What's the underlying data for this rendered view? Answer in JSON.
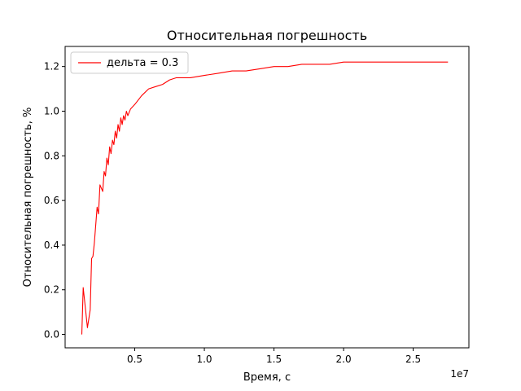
{
  "chart_data": {
    "type": "line",
    "title": "Относительная погрешность",
    "xlabel": "Время, с",
    "ylabel": "Относительная погрешность, %",
    "x_offset_label": "1e7",
    "xlim": [
      0.0,
      2.9
    ],
    "ylim": [
      -0.06,
      1.29
    ],
    "x_ticks": [
      0.5,
      1.0,
      1.5,
      2.0,
      2.5
    ],
    "x_tick_labels": [
      "0.5",
      "1.0",
      "1.5",
      "2.0",
      "2.5"
    ],
    "y_ticks": [
      0.0,
      0.2,
      0.4,
      0.6,
      0.8,
      1.0,
      1.2
    ],
    "y_tick_labels": [
      "0.0",
      "0.2",
      "0.4",
      "0.6",
      "0.8",
      "1.0",
      "1.2"
    ],
    "grid": false,
    "legend_position": "upper-left",
    "colors": {
      "series": "#ff0000",
      "axes": "#000000",
      "background": "#ffffff"
    },
    "series": [
      {
        "name": "дельта = 0.3",
        "color": "#ff0000",
        "x": [
          0.12,
          0.13,
          0.15,
          0.16,
          0.18,
          0.19,
          0.2,
          0.21,
          0.23,
          0.24,
          0.25,
          0.27,
          0.28,
          0.29,
          0.3,
          0.31,
          0.32,
          0.33,
          0.34,
          0.35,
          0.36,
          0.37,
          0.38,
          0.39,
          0.4,
          0.41,
          0.42,
          0.43,
          0.44,
          0.45,
          0.47,
          0.5,
          0.55,
          0.6,
          0.65,
          0.7,
          0.75,
          0.8,
          0.9,
          1.0,
          1.1,
          1.2,
          1.3,
          1.4,
          1.5,
          1.6,
          1.7,
          1.8,
          1.9,
          2.0,
          2.1,
          2.2,
          2.3,
          2.4,
          2.5,
          2.6,
          2.7,
          2.75
        ],
        "y": [
          0.0,
          0.21,
          0.09,
          0.03,
          0.11,
          0.34,
          0.35,
          0.41,
          0.57,
          0.54,
          0.67,
          0.64,
          0.73,
          0.71,
          0.79,
          0.76,
          0.84,
          0.81,
          0.87,
          0.85,
          0.91,
          0.88,
          0.94,
          0.91,
          0.97,
          0.94,
          0.98,
          0.96,
          1.0,
          0.98,
          1.01,
          1.03,
          1.07,
          1.1,
          1.11,
          1.12,
          1.14,
          1.15,
          1.15,
          1.16,
          1.17,
          1.18,
          1.18,
          1.19,
          1.2,
          1.2,
          1.21,
          1.21,
          1.21,
          1.22,
          1.22,
          1.22,
          1.22,
          1.22,
          1.22,
          1.22,
          1.22,
          1.22
        ]
      }
    ]
  }
}
